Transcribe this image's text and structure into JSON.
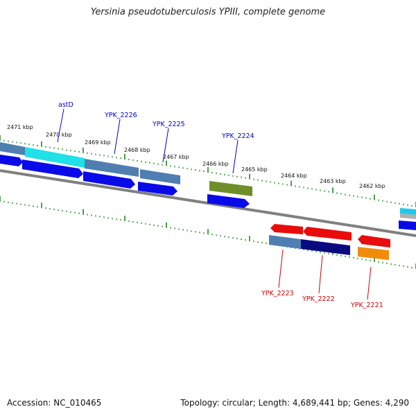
{
  "title": "Yersinia pseudotuberculosis YPIII, complete genome",
  "footer": {
    "accession": "Accession: NC_010465",
    "summary": "Topology: circular; Length: 4,689,441 bp; Genes: 4,290"
  },
  "colors": {
    "tick": "#1a8a1a",
    "backbone": "#808080",
    "label_forward": "#0000cc",
    "label_reverse": "#cc0000"
  },
  "tick_labels": [
    "2471 kbp",
    "2470 kbp",
    "2469 kbp",
    "2468 kbp",
    "2467 kbp",
    "2466 kbp",
    "2465 kbp",
    "2464 kbp",
    "2463 kbp",
    "2462 kbp"
  ],
  "forward_labels": [
    "astD",
    "YPK_2226",
    "YPK_2225",
    "YPK_2224"
  ],
  "reverse_labels": [
    "YPK_2223",
    "YPK_2222",
    "YPK_2221"
  ]
}
